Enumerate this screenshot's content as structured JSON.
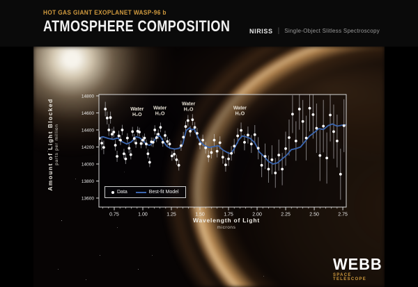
{
  "header": {
    "kicker": "HOT GAS GIANT EXOPLANET WASP-96 b",
    "title": "ATMOSPHERE COMPOSITION",
    "instrument": "NIRISS",
    "divider": "|",
    "mode": "Single-Object Slitless Spectroscopy"
  },
  "footer_logo": {
    "name": "WEBB",
    "subtitle": "SPACE TELESCOPE"
  },
  "colors": {
    "accent_gold": "#d09a3e",
    "model_blue": "#3c67b0",
    "data_point": "#ffffff",
    "error_bar": "rgba(220,220,225,0.55)",
    "plot_border": "#d8d8d8",
    "tick_text": "#eeeeee",
    "annotation_text": "#e6e0d4",
    "plot_fill": "rgba(0,0,6,0.34)"
  },
  "chart_data": {
    "type": "scatter",
    "title": "",
    "xlabel": "Wavelength of Light",
    "xlabel_sub": "microns",
    "ylabel": "Amount of Light Blocked",
    "ylabel_sub": "parts per million",
    "xlim": [
      0.616,
      2.78
    ],
    "ylim": [
      13494,
      14816
    ],
    "x_tick_labels": [
      "0.75",
      "1.00",
      "1.25",
      "1.50",
      "1.75",
      "2.00",
      "2.25",
      "2.50",
      "2.75"
    ],
    "x_minor_step": 0.05,
    "y_tick_labels": [
      "14800",
      "14600",
      "14400",
      "14200",
      "14000",
      "13800",
      "13600"
    ],
    "grid": false,
    "legend_position": "lower-left",
    "legend": {
      "data_label": "Data",
      "model_label": "Best-fit Model"
    },
    "annotations": [
      {
        "x": 0.95,
        "y": 14630,
        "line1": "Water",
        "line2": "H₂O"
      },
      {
        "x": 1.15,
        "y": 14640,
        "line1": "Water",
        "line2": "H₂O"
      },
      {
        "x": 1.4,
        "y": 14690,
        "line1": "Water",
        "line2": "H₂O"
      },
      {
        "x": 1.85,
        "y": 14640,
        "line1": "Water",
        "line2": "H₂O"
      }
    ],
    "series": [
      {
        "name": "Data",
        "type": "scatter",
        "points": [
          [
            0.62,
            14300,
            85
          ],
          [
            0.641,
            14245,
            80
          ],
          [
            0.658,
            14195,
            80
          ],
          [
            0.672,
            14645,
            85
          ],
          [
            0.688,
            14540,
            75
          ],
          [
            0.703,
            14400,
            70
          ],
          [
            0.717,
            14545,
            70
          ],
          [
            0.731,
            14350,
            65
          ],
          [
            0.746,
            14375,
            62
          ],
          [
            0.76,
            14220,
            62
          ],
          [
            0.775,
            14090,
            65
          ],
          [
            0.79,
            14330,
            60
          ],
          [
            0.805,
            14280,
            58
          ],
          [
            0.82,
            14400,
            60
          ],
          [
            0.835,
            14120,
            58
          ],
          [
            0.85,
            14060,
            60
          ],
          [
            0.865,
            14305,
            56
          ],
          [
            0.88,
            14185,
            56
          ],
          [
            0.895,
            14110,
            56
          ],
          [
            0.91,
            14380,
            56
          ],
          [
            0.925,
            14300,
            52
          ],
          [
            0.94,
            14245,
            55
          ],
          [
            0.955,
            14385,
            55
          ],
          [
            0.97,
            14375,
            52
          ],
          [
            0.985,
            14240,
            55
          ],
          [
            1.0,
            14280,
            52
          ],
          [
            1.015,
            14305,
            52
          ],
          [
            1.03,
            14235,
            52
          ],
          [
            1.045,
            14120,
            55
          ],
          [
            1.06,
            14020,
            56
          ],
          [
            1.075,
            14260,
            52
          ],
          [
            1.09,
            14255,
            55
          ],
          [
            1.105,
            14400,
            55
          ],
          [
            1.12,
            14310,
            52
          ],
          [
            1.135,
            14350,
            55
          ],
          [
            1.155,
            14430,
            56
          ],
          [
            1.175,
            14255,
            52
          ],
          [
            1.195,
            14335,
            55
          ],
          [
            1.215,
            14265,
            55
          ],
          [
            1.235,
            14235,
            56
          ],
          [
            1.255,
            14095,
            56
          ],
          [
            1.275,
            14115,
            60
          ],
          [
            1.295,
            14050,
            60
          ],
          [
            1.315,
            13985,
            62
          ],
          [
            1.335,
            14215,
            60
          ],
          [
            1.355,
            14315,
            62
          ],
          [
            1.375,
            14440,
            62
          ],
          [
            1.395,
            14510,
            65
          ],
          [
            1.415,
            14385,
            62
          ],
          [
            1.435,
            14520,
            65
          ],
          [
            1.455,
            14430,
            62
          ],
          [
            1.475,
            14360,
            62
          ],
          [
            1.5,
            14235,
            62
          ],
          [
            1.525,
            14280,
            65
          ],
          [
            1.55,
            14190,
            66
          ],
          [
            1.575,
            14090,
            68
          ],
          [
            1.6,
            14135,
            70
          ],
          [
            1.625,
            14280,
            72
          ],
          [
            1.65,
            14150,
            72
          ],
          [
            1.675,
            14250,
            75
          ],
          [
            1.7,
            14080,
            76
          ],
          [
            1.725,
            13990,
            80
          ],
          [
            1.75,
            14060,
            82
          ],
          [
            1.775,
            14125,
            85
          ],
          [
            1.8,
            14210,
            86
          ],
          [
            1.83,
            14330,
            90
          ],
          [
            1.86,
            14395,
            92
          ],
          [
            1.89,
            14255,
            95
          ],
          [
            1.92,
            14340,
            100
          ],
          [
            1.95,
            14235,
            105
          ],
          [
            1.98,
            14345,
            112
          ],
          [
            2.01,
            14185,
            130
          ],
          [
            2.04,
            13985,
            140
          ],
          [
            2.07,
            14090,
            150
          ],
          [
            2.1,
            13940,
            160
          ],
          [
            2.13,
            14050,
            170
          ],
          [
            2.16,
            13895,
            175
          ],
          [
            2.19,
            14105,
            182
          ],
          [
            2.22,
            13940,
            190
          ],
          [
            2.25,
            14180,
            200
          ],
          [
            2.28,
            14310,
            212
          ],
          [
            2.31,
            14585,
            222
          ],
          [
            2.34,
            14270,
            232
          ],
          [
            2.37,
            14645,
            242
          ],
          [
            2.4,
            14500,
            252
          ],
          [
            2.43,
            14305,
            262
          ],
          [
            2.46,
            14655,
            272
          ],
          [
            2.49,
            14580,
            282
          ],
          [
            2.52,
            14420,
            290
          ],
          [
            2.55,
            14100,
            300
          ],
          [
            2.58,
            14445,
            308
          ],
          [
            2.61,
            14070,
            300
          ],
          [
            2.64,
            14575,
            310
          ],
          [
            2.67,
            14380,
            318
          ],
          [
            2.7,
            14270,
            310
          ],
          [
            2.73,
            13880,
            300
          ],
          [
            2.76,
            14450,
            310
          ]
        ]
      },
      {
        "name": "Best-fit Model",
        "type": "line",
        "points": [
          [
            0.616,
            14305
          ],
          [
            0.65,
            14320
          ],
          [
            0.7,
            14300
          ],
          [
            0.74,
            14290
          ],
          [
            0.78,
            14305
          ],
          [
            0.82,
            14260
          ],
          [
            0.86,
            14235
          ],
          [
            0.9,
            14260
          ],
          [
            0.94,
            14320
          ],
          [
            0.97,
            14310
          ],
          [
            1.0,
            14280
          ],
          [
            1.03,
            14230
          ],
          [
            1.06,
            14220
          ],
          [
            1.09,
            14255
          ],
          [
            1.12,
            14320
          ],
          [
            1.15,
            14330
          ],
          [
            1.18,
            14265
          ],
          [
            1.21,
            14210
          ],
          [
            1.24,
            14185
          ],
          [
            1.28,
            14175
          ],
          [
            1.32,
            14185
          ],
          [
            1.35,
            14235
          ],
          [
            1.38,
            14395
          ],
          [
            1.41,
            14425
          ],
          [
            1.43,
            14400
          ],
          [
            1.45,
            14415
          ],
          [
            1.47,
            14350
          ],
          [
            1.5,
            14265
          ],
          [
            1.54,
            14215
          ],
          [
            1.58,
            14195
          ],
          [
            1.62,
            14205
          ],
          [
            1.66,
            14215
          ],
          [
            1.7,
            14165
          ],
          [
            1.74,
            14135
          ],
          [
            1.77,
            14120
          ],
          [
            1.8,
            14180
          ],
          [
            1.84,
            14285
          ],
          [
            1.87,
            14330
          ],
          [
            1.9,
            14320
          ],
          [
            1.94,
            14300
          ],
          [
            1.98,
            14250
          ],
          [
            2.02,
            14140
          ],
          [
            2.06,
            14090
          ],
          [
            2.1,
            14030
          ],
          [
            2.14,
            14000
          ],
          [
            2.18,
            14015
          ],
          [
            2.22,
            14060
          ],
          [
            2.26,
            14105
          ],
          [
            2.3,
            14170
          ],
          [
            2.34,
            14180
          ],
          [
            2.38,
            14200
          ],
          [
            2.42,
            14265
          ],
          [
            2.46,
            14330
          ],
          [
            2.5,
            14370
          ],
          [
            2.54,
            14415
          ],
          [
            2.58,
            14405
          ],
          [
            2.62,
            14450
          ],
          [
            2.66,
            14470
          ],
          [
            2.7,
            14445
          ],
          [
            2.74,
            14455
          ],
          [
            2.78,
            14460
          ]
        ]
      }
    ]
  }
}
